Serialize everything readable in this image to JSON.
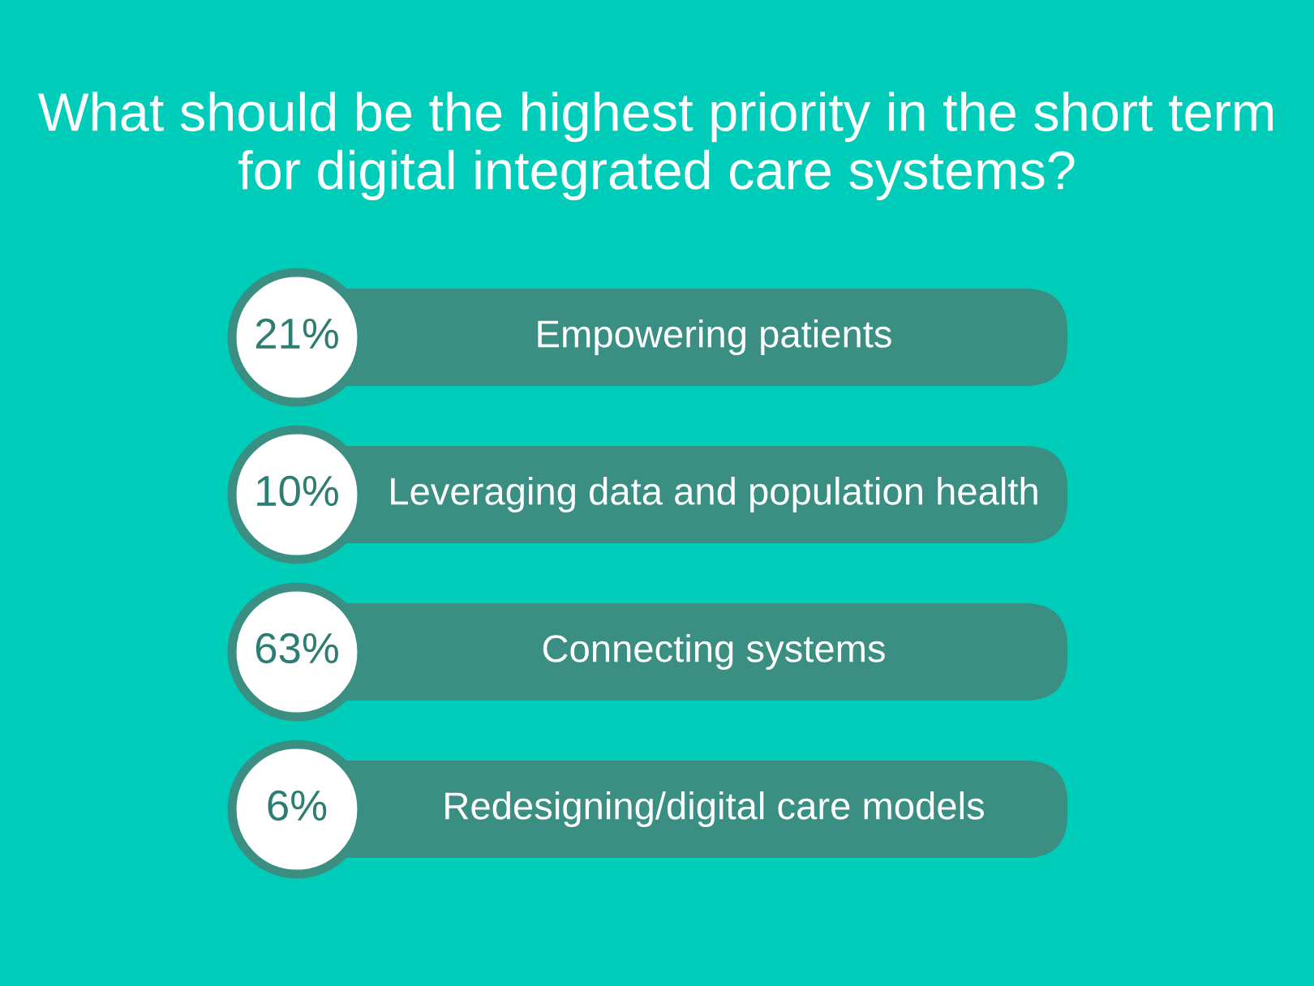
{
  "chart_data": {
    "type": "other",
    "title": "What should be the highest priority in the short term for digital integrated care systems?",
    "categories": [
      "Empowering patients",
      "Leveraging data and population health",
      "Connecting systems",
      "Redesigning/digital care models"
    ],
    "values": [
      21,
      10,
      63,
      6
    ],
    "value_labels": [
      "21%",
      "10%",
      "63%",
      "6%"
    ],
    "color": "#3a8f82"
  }
}
